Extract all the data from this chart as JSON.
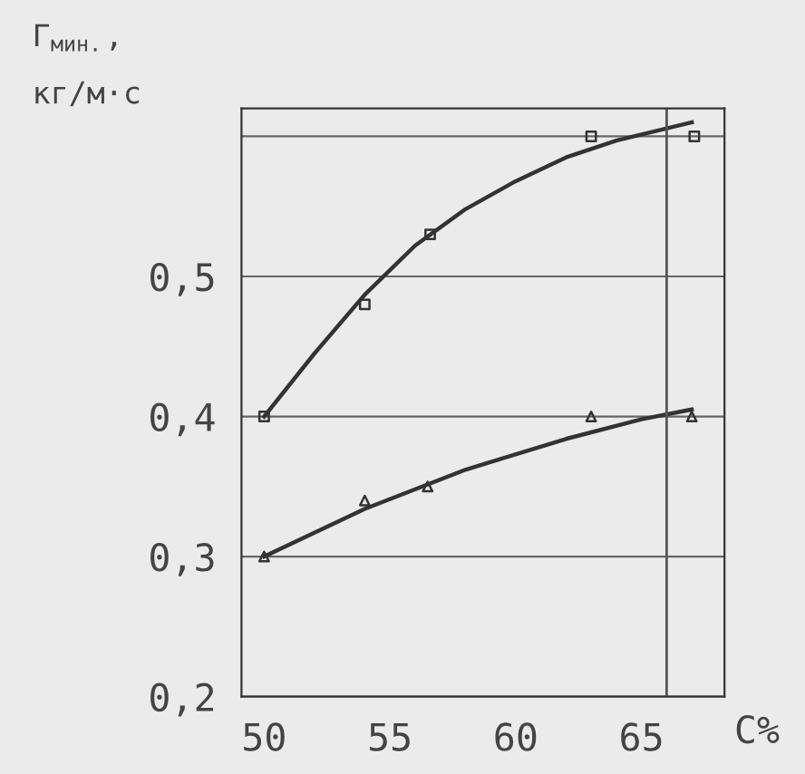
{
  "chart_data": {
    "type": "scatter",
    "ylabel": "Г$_{мин.}$,\nкг/м·с",
    "xlabel": "С%",
    "xlim": [
      49.1,
      68.3
    ],
    "ylim": [
      0.2,
      0.62
    ],
    "xticks": [
      50,
      55,
      60,
      65
    ],
    "yticks": [
      {
        "value": 0.2,
        "label": "0,2"
      },
      {
        "value": 0.3,
        "label": "0,3"
      },
      {
        "value": 0.4,
        "label": "0,4"
      },
      {
        "value": 0.5,
        "label": "0,5"
      },
      {
        "value": 0.6,
        "label": null
      }
    ],
    "grid": "y",
    "ref_lines": [
      {
        "axis": "x",
        "value": 66,
        "color": "#555555"
      }
    ],
    "series": [
      {
        "marker": "square",
        "color": "#333333",
        "x": [
          50,
          54,
          56.6,
          63,
          67.1
        ],
        "values": [
          0.4,
          0.48,
          0.53,
          0.6,
          0.6
        ]
      },
      {
        "marker": "triangle",
        "color": "#333333",
        "x": [
          50,
          54,
          56.5,
          63,
          67
        ],
        "values": [
          0.3,
          0.34,
          0.35,
          0.4,
          0.4
        ]
      },
      {
        "type": "line",
        "marker": "none",
        "color": "#333333",
        "x": [
          50,
          52,
          54,
          56,
          58,
          60,
          62,
          64,
          67
        ],
        "values": [
          0.4,
          0.445,
          0.487,
          0.522,
          0.548,
          0.568,
          0.585,
          0.597,
          0.61
        ]
      },
      {
        "type": "line",
        "marker": "none",
        "color": "#333333",
        "x": [
          50,
          54,
          58,
          62,
          65,
          67
        ],
        "values": [
          0.3,
          0.334,
          0.362,
          0.384,
          0.398,
          0.405
        ]
      }
    ]
  }
}
